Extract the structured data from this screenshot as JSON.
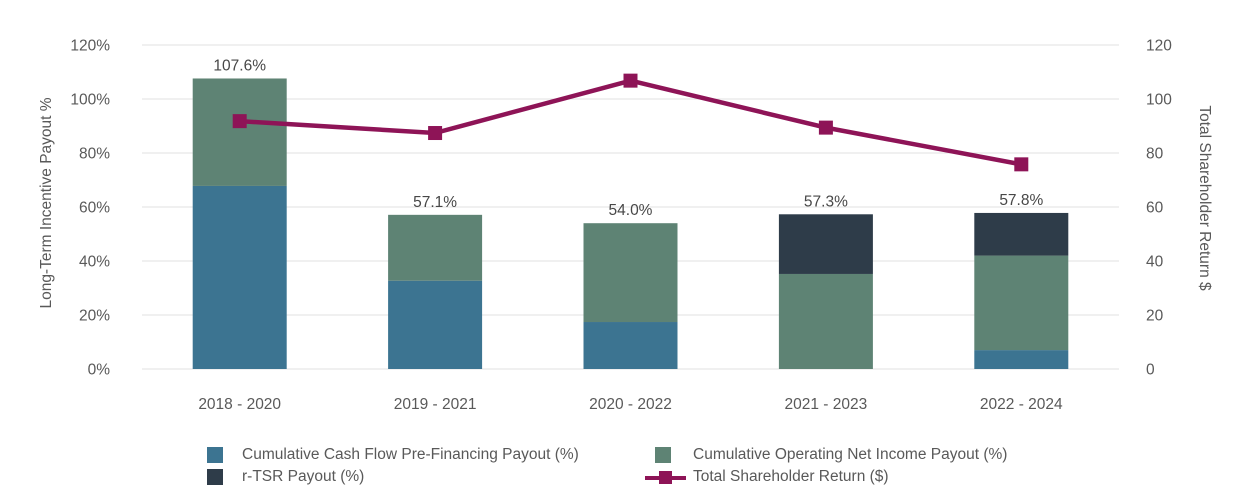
{
  "theme": {
    "background": "#FFFFFF",
    "gridline": "#E2E2E2",
    "tick_text": "#595959",
    "data_label_text": "#474747"
  },
  "chart_data": {
    "type": "combo: stacked bar + line",
    "categories": [
      "2018 - 2020",
      "2019 - 2021",
      "2020 - 2022",
      "2021 - 2023",
      "2022 - 2024"
    ],
    "bar_series": [
      {
        "name": "Cumulative Cash Flow Pre-Financing Payout (%)",
        "color": "#3C7491",
        "values": [
          67.8,
          32.7,
          17.4,
          0,
          7.0
        ]
      },
      {
        "name": "Cumulative Operating Net Income Payout (%)",
        "color": "#5E8374",
        "values": [
          39.8,
          24.4,
          36.6,
          35.2,
          35.0
        ]
      },
      {
        "name": "r-TSR Payout (%)",
        "color": "#2E3C49",
        "values": [
          0,
          0,
          0,
          22.1,
          15.8
        ]
      }
    ],
    "bar_totals": [
      107.6,
      57.1,
      54.0,
      57.3,
      57.8
    ],
    "bar_total_labels": [
      "107.6%",
      "57.1%",
      "54.0%",
      "57.3%",
      "57.8%"
    ],
    "line_series": {
      "name": "Total Shareholder Return ($)",
      "color": "#8E1457",
      "values": [
        91.8,
        87.4,
        106.8,
        89.4,
        75.8
      ]
    },
    "axis_tick_values": [
      120,
      100,
      80,
      60,
      40,
      20,
      0
    ],
    "left_axis": {
      "title": "Long-Term Incentive Payout %",
      "ticks": [
        "120%",
        "100%",
        "80%",
        "60%",
        "40%",
        "20%",
        "0%"
      ],
      "min": 0,
      "max": 120
    },
    "right_axis": {
      "title": "Total Shareholder Return $",
      "ticks": [
        "120",
        "100",
        "80",
        "60",
        "40",
        "20",
        "0"
      ],
      "min": 0,
      "max": 120
    },
    "grid": "horizontal-on",
    "legend_position": "bottom-two-columns"
  }
}
